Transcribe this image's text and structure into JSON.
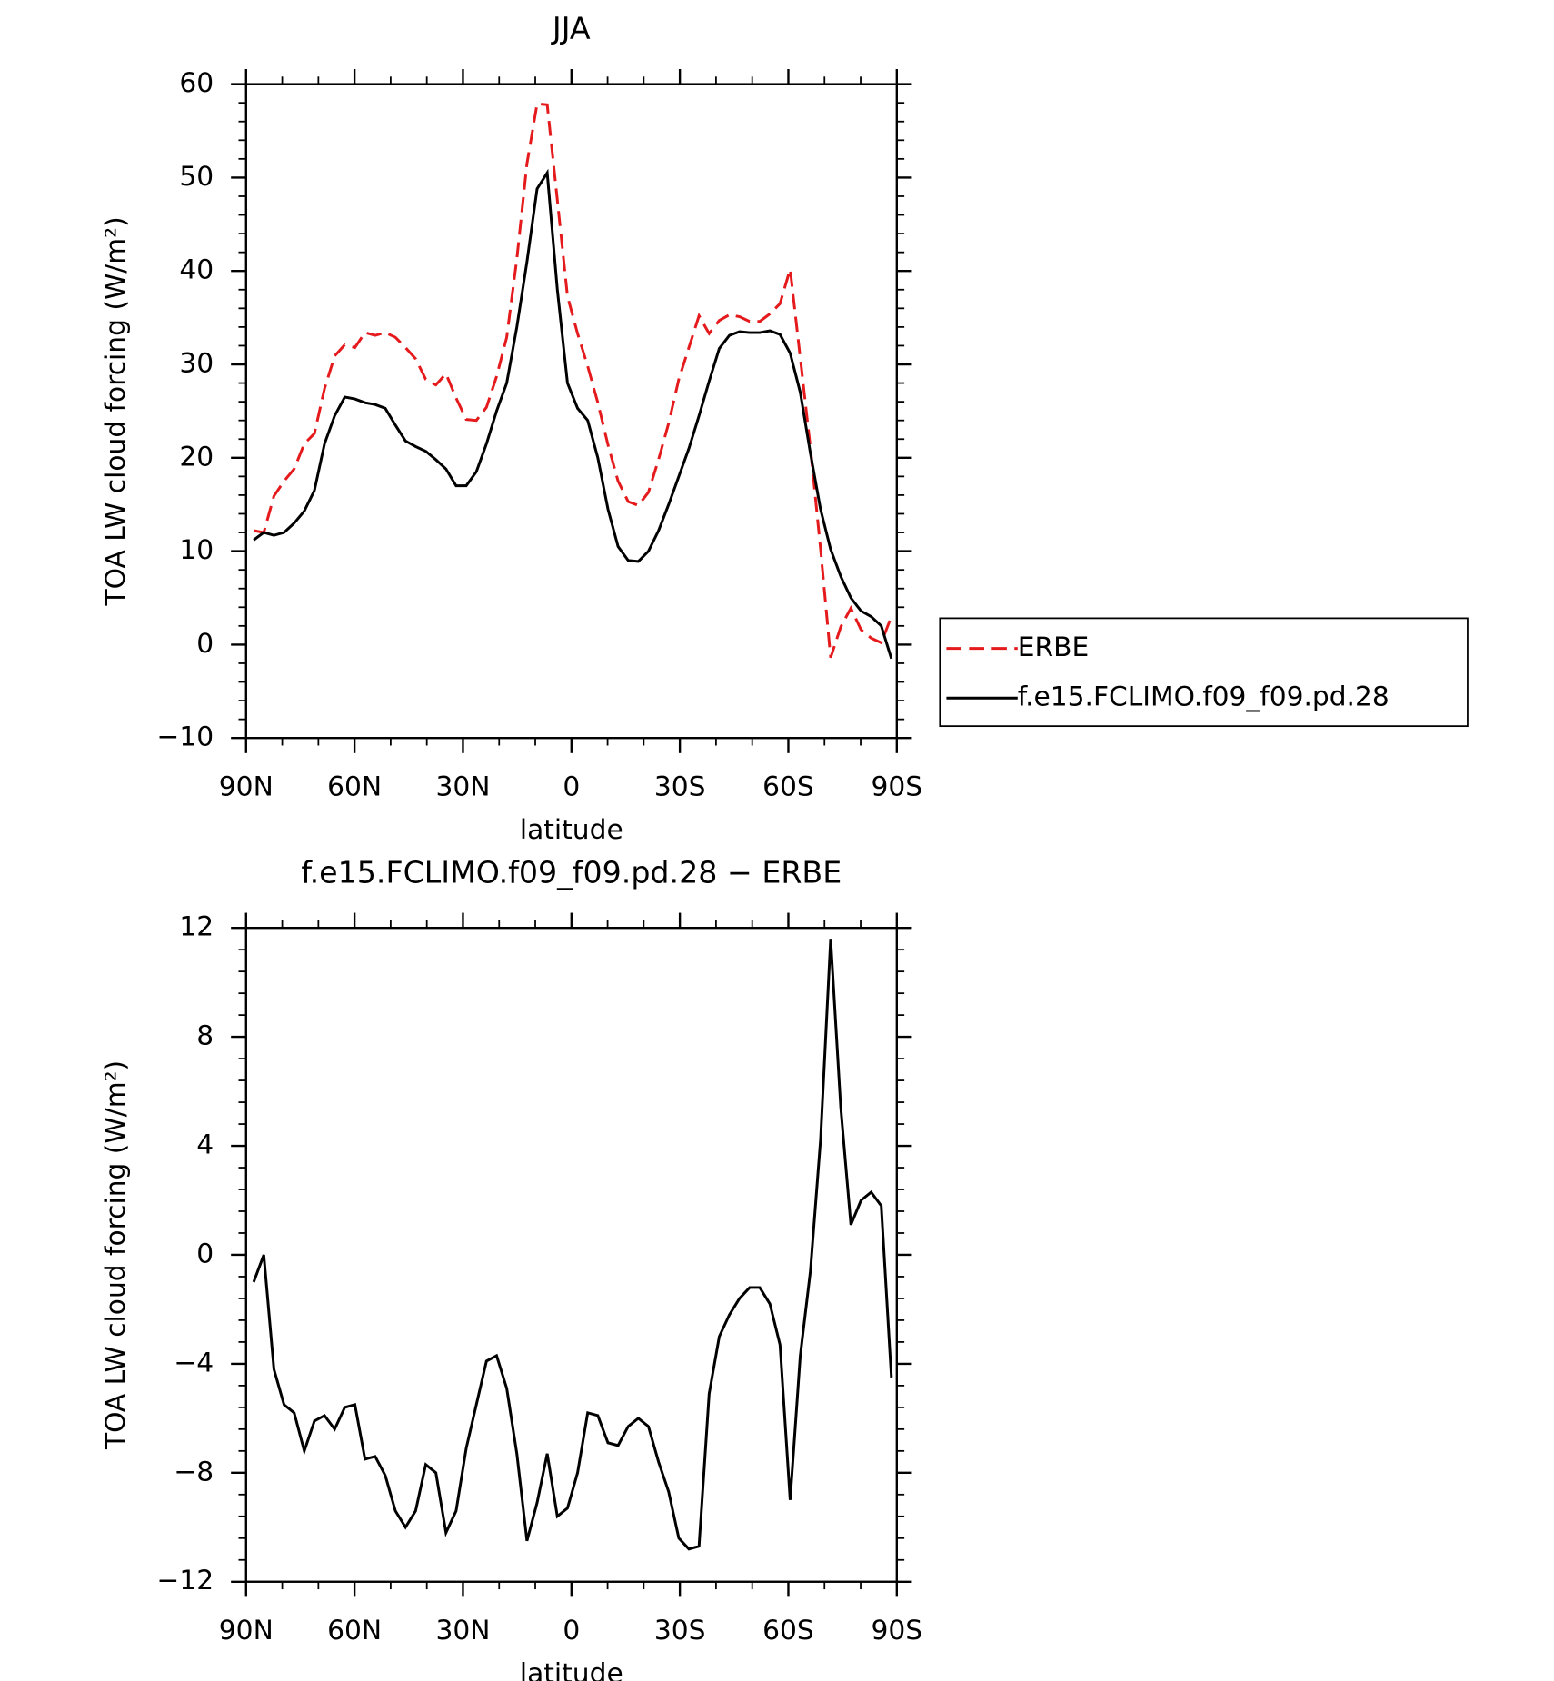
{
  "chart_data": [
    {
      "type": "line",
      "title": "JJA",
      "xlabel": "latitude",
      "ylabel": "TOA LW cloud forcing (W/m²)",
      "x": [
        87.9,
        85.1,
        82.3,
        79.5,
        76.7,
        73.9,
        71.1,
        68.3,
        65.5,
        62.7,
        59.9,
        57.1,
        54.3,
        51.5,
        48.7,
        45.9,
        43.1,
        40.3,
        37.5,
        34.7,
        31.9,
        29.1,
        26.3,
        23.5,
        20.7,
        17.9,
        15.1,
        12.3,
        9.5,
        6.7,
        3.9,
        1.1,
        -1.7,
        -4.5,
        -7.3,
        -10.1,
        -12.9,
        -15.7,
        -18.5,
        -21.3,
        -24.1,
        -26.9,
        -29.7,
        -32.5,
        -35.3,
        -38.1,
        -40.9,
        -43.7,
        -46.5,
        -49.3,
        -52.1,
        -54.9,
        -57.7,
        -60.5,
        -63.3,
        -66.1,
        -68.9,
        -71.7,
        -74.5,
        -77.3,
        -80.1,
        -82.9,
        -85.7,
        -88.5
      ],
      "series": [
        {
          "name": "ERBE",
          "color": "#e41a1c",
          "dash": "dashed",
          "values": [
            12.2,
            12,
            15.9,
            17.5,
            18.8,
            21.5,
            22.6,
            27.4,
            30.9,
            32.1,
            31.8,
            33.4,
            33.1,
            33.4,
            32.9,
            31.8,
            30.6,
            28.4,
            27.8,
            29,
            26.4,
            24.1,
            24,
            25.4,
            28.7,
            32.9,
            41.3,
            51.5,
            57.9,
            57.8,
            47.6,
            37.3,
            33.3,
            29.8,
            25.9,
            21.4,
            17.5,
            15.3,
            14.9,
            16.3,
            19.8,
            23.7,
            28.4,
            31.8,
            35.2,
            33.3,
            34.7,
            35.3,
            35.1,
            34.6,
            34.6,
            35.4,
            36.5,
            40.2,
            30.7,
            21.1,
            10.3,
            -1.4,
            1.9,
            3.9,
            1.6,
            0.7,
            0.2,
            3.0
          ]
        },
        {
          "name": "f.e15.FCLIMO.f09_f09.pd.28",
          "color": "#000000",
          "dash": "solid",
          "values": [
            11.2,
            12,
            11.7,
            12,
            13,
            14.3,
            16.5,
            21.5,
            24.5,
            26.5,
            26.3,
            25.9,
            25.7,
            25.3,
            23.5,
            21.8,
            21.2,
            20.7,
            19.8,
            18.8,
            17,
            17,
            18.5,
            21.5,
            25,
            28,
            34,
            41,
            48.8,
            50.5,
            38,
            28,
            25.3,
            24,
            20,
            14.5,
            10.5,
            9,
            8.9,
            10,
            12.2,
            15,
            18,
            21,
            24.5,
            28.2,
            31.7,
            33.1,
            33.5,
            33.4,
            33.4,
            33.6,
            33.2,
            31.2,
            27,
            20.5,
            14.5,
            10.2,
            7.3,
            5,
            3.6,
            3,
            2,
            -1.5
          ]
        }
      ],
      "xlim": [
        90,
        -90
      ],
      "xticks": [
        {
          "value": 90,
          "label": "90N"
        },
        {
          "value": 60,
          "label": "60N"
        },
        {
          "value": 30,
          "label": "30N"
        },
        0,
        {
          "value": -30,
          "label": "30S"
        },
        {
          "value": -60,
          "label": "60S"
        },
        {
          "value": -90,
          "label": "90S"
        }
      ],
      "ylim": [
        -10,
        60
      ],
      "yticks": [
        {
          "value": -10,
          "label": "−10"
        },
        0,
        10,
        20,
        30,
        40,
        50,
        60
      ],
      "legend": "right"
    },
    {
      "type": "line",
      "title": "f.e15.FCLIMO.f09_f09.pd.28 − ERBE",
      "xlabel": "latitude",
      "ylabel": "TOA LW cloud forcing (W/m²)",
      "x": [
        87.9,
        85.1,
        82.3,
        79.5,
        76.7,
        73.9,
        71.1,
        68.3,
        65.5,
        62.7,
        59.9,
        57.1,
        54.3,
        51.5,
        48.7,
        45.9,
        43.1,
        40.3,
        37.5,
        34.7,
        31.9,
        29.1,
        26.3,
        23.5,
        20.7,
        17.9,
        15.1,
        12.3,
        9.5,
        6.7,
        3.9,
        1.1,
        -1.7,
        -4.5,
        -7.3,
        -10.1,
        -12.9,
        -15.7,
        -18.5,
        -21.3,
        -24.1,
        -26.9,
        -29.7,
        -32.5,
        -35.3,
        -38.1,
        -40.9,
        -43.7,
        -46.5,
        -49.3,
        -52.1,
        -54.9,
        -57.7,
        -60.5,
        -63.3,
        -66.1,
        -68.9,
        -71.7,
        -74.5,
        -77.3,
        -80.1,
        -82.9,
        -85.7,
        -88.5
      ],
      "series": [
        {
          "color": "#000000",
          "dash": "solid",
          "values": [
            -1,
            0,
            -4.2,
            -5.5,
            -5.8,
            -7.2,
            -6.1,
            -5.9,
            -6.4,
            -5.6,
            -5.5,
            -7.5,
            -7.4,
            -8.1,
            -9.4,
            -10,
            -9.4,
            -7.7,
            -8,
            -10.2,
            -9.4,
            -7.1,
            -5.5,
            -3.9,
            -3.7,
            -4.9,
            -7.3,
            -10.5,
            -9.1,
            -7.3,
            -9.6,
            -9.3,
            -8,
            -5.8,
            -5.9,
            -6.9,
            -7,
            -6.3,
            -6,
            -6.3,
            -7.6,
            -8.7,
            -10.4,
            -10.8,
            -10.7,
            -5.1,
            -3,
            -2.2,
            -1.6,
            -1.2,
            -1.2,
            -1.8,
            -3.3,
            -9,
            -3.7,
            -0.6,
            4.2,
            11.6,
            5.4,
            1.1,
            2,
            2.3,
            1.8,
            -4.5
          ]
        }
      ],
      "xlim": [
        90,
        -90
      ],
      "xticks": [
        {
          "value": 90,
          "label": "90N"
        },
        {
          "value": 60,
          "label": "60N"
        },
        {
          "value": 30,
          "label": "30N"
        },
        0,
        {
          "value": -30,
          "label": "30S"
        },
        {
          "value": -60,
          "label": "60S"
        },
        {
          "value": -90,
          "label": "90S"
        }
      ],
      "ylim": [
        -12,
        12
      ],
      "yticks": [
        {
          "value": -12,
          "label": "−12"
        },
        {
          "value": -8,
          "label": "−8"
        },
        {
          "value": -4,
          "label": "−4"
        },
        0,
        4,
        8,
        12
      ]
    }
  ]
}
